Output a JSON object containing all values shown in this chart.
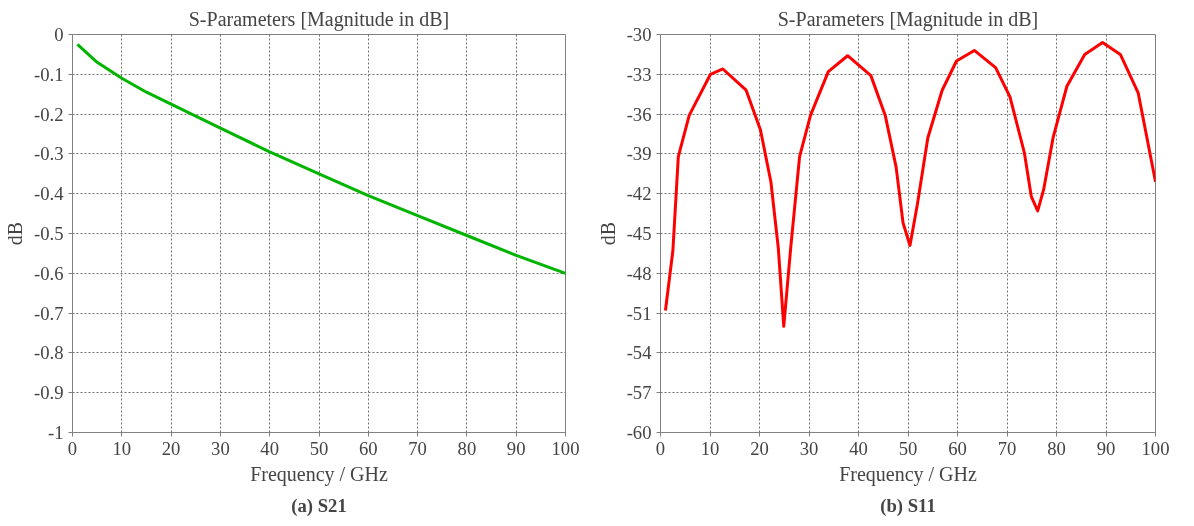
{
  "chart_data": [
    {
      "type": "line",
      "title": "S-Parameters [Magnitude in dB]",
      "xlabel": "Frequency / GHz",
      "ylabel": "dB",
      "annotations": [
        "(a) S21"
      ],
      "xlim": [
        0,
        100
      ],
      "xticks": [
        0,
        10,
        20,
        30,
        40,
        50,
        60,
        70,
        80,
        90,
        100
      ],
      "ylim": [
        -1,
        0
      ],
      "yticks": [
        -1,
        -0.9,
        -0.8,
        -0.7,
        -0.6,
        -0.5,
        -0.4,
        -0.3,
        -0.2,
        -0.1,
        0
      ],
      "grid": true,
      "line_style": "solid",
      "marker": "none",
      "series": [
        {
          "color": "#00b400",
          "x": [
            1,
            5,
            10,
            15,
            20,
            30,
            40,
            50,
            60,
            70,
            80,
            90,
            100
          ],
          "values": [
            -0.025,
            -0.07,
            -0.11,
            -0.145,
            -0.175,
            -0.235,
            -0.295,
            -0.35,
            -0.405,
            -0.455,
            -0.505,
            -0.555,
            -0.6
          ]
        }
      ]
    },
    {
      "type": "line",
      "title": "S-Parameters [Magnitude in dB]",
      "xlabel": "Frequency / GHz",
      "ylabel": "dB",
      "annotations": [
        "(b) S11"
      ],
      "xlim": [
        0,
        100
      ],
      "xticks": [
        0,
        10,
        20,
        30,
        40,
        50,
        60,
        70,
        80,
        90,
        100
      ],
      "ylim": [
        -60,
        -30
      ],
      "yticks": [
        -60,
        -57,
        -54,
        -51,
        -48,
        -45,
        -42,
        -39,
        -36,
        -33,
        -30
      ],
      "grid": true,
      "line_style": "solid",
      "marker": "none",
      "series": [
        {
          "color": "#ff0000",
          "x": [
            1,
            2.5,
            3.6,
            5.8,
            10.1,
            12.6,
            17.3,
            20.2,
            22.3,
            23.8,
            24.9,
            26.3,
            28.1,
            30.3,
            33.9,
            37.8,
            42.5,
            45.4,
            47.6,
            49,
            50.4,
            51.9,
            54,
            56.9,
            59.8,
            63.4,
            67.7,
            70.6,
            73.5,
            74.9,
            76.2,
            77.4,
            79.3,
            82.1,
            85.7,
            89.3,
            92.9,
            96.5,
            100
          ],
          "values": [
            -50.8,
            -46.3,
            -39.2,
            -36.1,
            -33,
            -32.6,
            -34.2,
            -37.2,
            -41.1,
            -46.1,
            -52,
            -46.1,
            -39.2,
            -36.1,
            -32.8,
            -31.6,
            -33.1,
            -36.1,
            -40,
            -44.2,
            -45.9,
            -42.8,
            -37.8,
            -34.2,
            -32,
            -31.2,
            -32.5,
            -34.7,
            -38.9,
            -42.2,
            -43.3,
            -41.7,
            -37.8,
            -33.9,
            -31.5,
            -30.6,
            -31.5,
            -34.4,
            -41.1
          ]
        }
      ]
    }
  ]
}
